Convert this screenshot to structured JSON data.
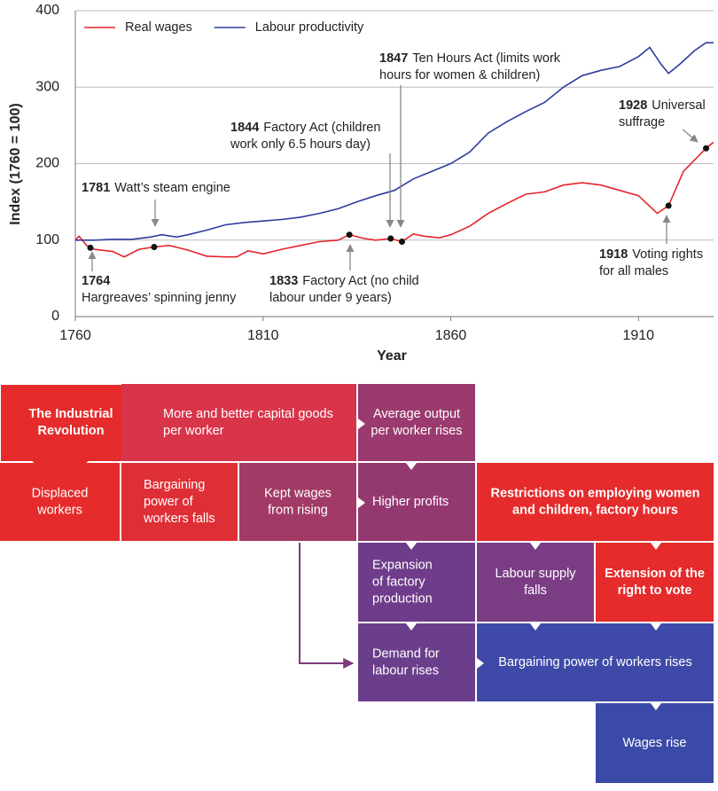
{
  "chart_data": {
    "type": "line",
    "ylabel": "Index (1760 = 100)",
    "xlabel": "Year",
    "xlim": [
      1760,
      1930
    ],
    "xticks": [
      1760,
      1810,
      1860,
      1910
    ],
    "ylim": [
      0,
      400
    ],
    "yticks": [
      0,
      100,
      200,
      300,
      400
    ],
    "grid": true,
    "legend": "top-left",
    "series": [
      {
        "name": "Real wages",
        "color": "#e3262b",
        "x": [
          1760,
          1761,
          1763,
          1765,
          1770,
          1773,
          1777,
          1781,
          1785,
          1790,
          1795,
          1800,
          1803,
          1806,
          1810,
          1815,
          1820,
          1825,
          1830,
          1833,
          1837,
          1840,
          1844,
          1847,
          1850,
          1853,
          1857,
          1860,
          1865,
          1870,
          1875,
          1880,
          1885,
          1890,
          1895,
          1900,
          1905,
          1910,
          1915,
          1918,
          1922,
          1925,
          1928,
          1930
        ],
        "values": [
          100,
          105,
          93,
          88,
          85,
          78,
          88,
          91,
          93,
          87,
          79,
          78,
          78,
          86,
          82,
          88,
          93,
          98,
          100,
          107,
          102,
          100,
          102,
          98,
          108,
          105,
          103,
          107,
          118,
          135,
          148,
          160,
          163,
          172,
          175,
          172,
          165,
          158,
          135,
          145,
          190,
          205,
          220,
          228
        ]
      },
      {
        "name": "Labour productivity",
        "color": "#2e3d9e",
        "x": [
          1760,
          1765,
          1770,
          1775,
          1780,
          1783,
          1787,
          1790,
          1795,
          1800,
          1805,
          1810,
          1815,
          1820,
          1825,
          1830,
          1835,
          1840,
          1845,
          1850,
          1855,
          1860,
          1865,
          1870,
          1875,
          1880,
          1885,
          1890,
          1895,
          1900,
          1905,
          1910,
          1913,
          1916,
          1918,
          1921,
          1925,
          1928,
          1930
        ],
        "values": [
          100,
          100,
          101,
          101,
          104,
          107,
          104,
          107,
          113,
          120,
          123,
          125,
          127,
          130,
          135,
          141,
          150,
          158,
          165,
          180,
          190,
          200,
          215,
          240,
          255,
          268,
          280,
          300,
          315,
          322,
          327,
          340,
          352,
          330,
          318,
          330,
          348,
          358,
          358
        ]
      }
    ],
    "annotations": [
      {
        "x": 1764,
        "y": 90,
        "lines": [
          "Hargreaves’ spinning jenny"
        ]
      },
      {
        "x": 1781,
        "y": 91,
        "lines": [
          "Watt’s steam engine"
        ]
      },
      {
        "x": 1833,
        "y": 107,
        "lines": [
          "Factory Act (no child",
          "labour under 9 years)"
        ]
      },
      {
        "x": 1844,
        "y": 102,
        "lines": [
          "Factory Act (children",
          "work only 6.5 hours day)"
        ]
      },
      {
        "x": 1847,
        "y": 98,
        "lines": [
          "Ten Hours Act (limits work",
          "hours for women & children)"
        ]
      },
      {
        "x": 1918,
        "y": 145,
        "lines": [
          "Voting rights",
          "for all males"
        ]
      },
      {
        "x": 1928,
        "y": 220,
        "lines": [
          "Universal",
          "suffrage"
        ]
      }
    ]
  },
  "diagram": {
    "nodes": [
      {
        "lines": [
          "The Industrial",
          "Revolution"
        ]
      },
      {
        "lines": [
          "More and better capital goods",
          "per worker"
        ]
      },
      {
        "lines": [
          "Average output",
          "per worker rises"
        ]
      },
      {
        "lines": [
          "Displaced",
          "workers"
        ]
      },
      {
        "lines": [
          "Bargaining",
          "power of",
          "workers falls"
        ]
      },
      {
        "lines": [
          "Kept wages",
          "from rising"
        ]
      },
      {
        "lines": [
          "Higher profits"
        ]
      },
      {
        "lines": [
          "Restrictions on employing women",
          "and children, factory hours"
        ]
      },
      {
        "lines": [
          "Expansion",
          "of factory",
          "production"
        ]
      },
      {
        "lines": [
          "Labour supply",
          "falls"
        ]
      },
      {
        "lines": [
          "Extension of the",
          "right to vote"
        ]
      },
      {
        "lines": [
          "Demand for",
          "labour rises"
        ]
      },
      {
        "lines": [
          "Bargaining power of workers rises"
        ]
      },
      {
        "lines": [
          "Wages rise"
        ]
      }
    ]
  }
}
